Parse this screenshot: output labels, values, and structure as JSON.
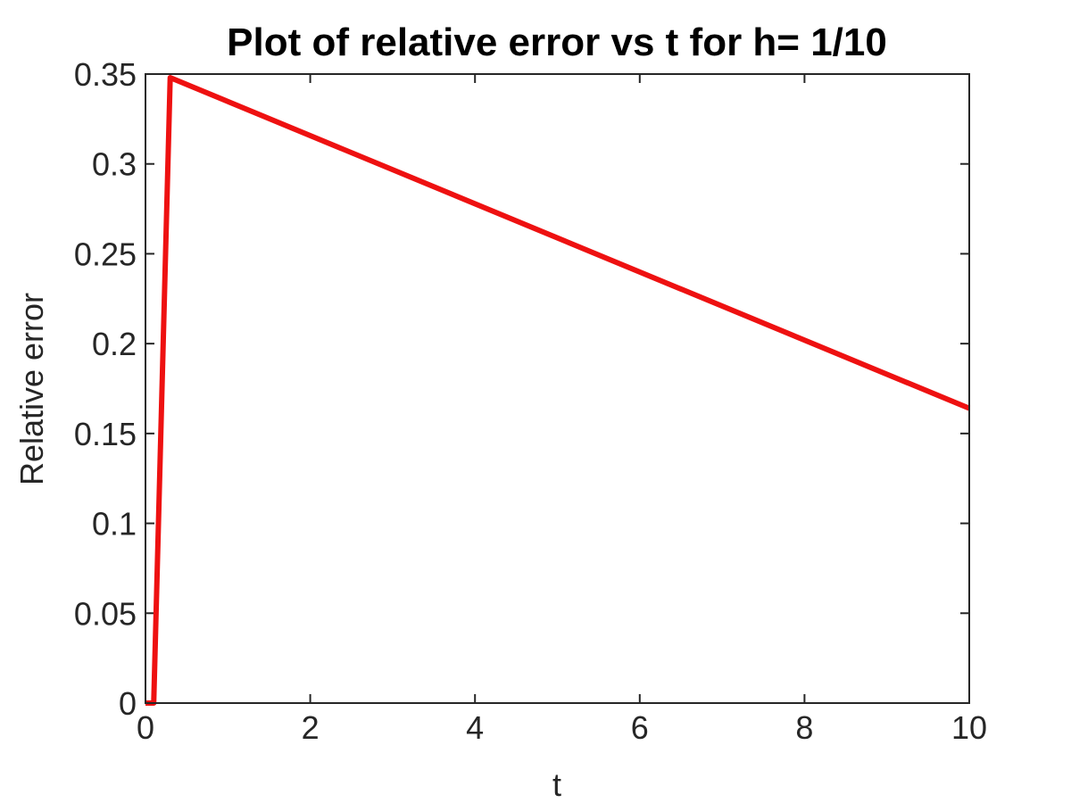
{
  "chart_data": {
    "type": "line",
    "title": "Plot of relative error vs t for h= 1/10",
    "xlabel": "t",
    "ylabel": "Relative error",
    "xlim": [
      0,
      10
    ],
    "ylim": [
      0,
      0.35
    ],
    "grid": false,
    "legend": "none",
    "x_ticks": [
      0,
      2,
      4,
      6,
      8,
      10
    ],
    "x_tick_labels": [
      "0",
      "2",
      "4",
      "6",
      "8",
      "10"
    ],
    "y_ticks": [
      0,
      0.05,
      0.1,
      0.15,
      0.2,
      0.25,
      0.3,
      0.35
    ],
    "y_tick_labels": [
      "0",
      "0.05",
      "0.1",
      "0.15",
      "0.2",
      "0.25",
      "0.3",
      "0.35"
    ],
    "series": [
      {
        "color": "#ee1111",
        "x": [
          0,
          0.1,
          0.3,
          10
        ],
        "y": [
          0,
          0,
          0.348,
          0.164
        ]
      }
    ]
  }
}
